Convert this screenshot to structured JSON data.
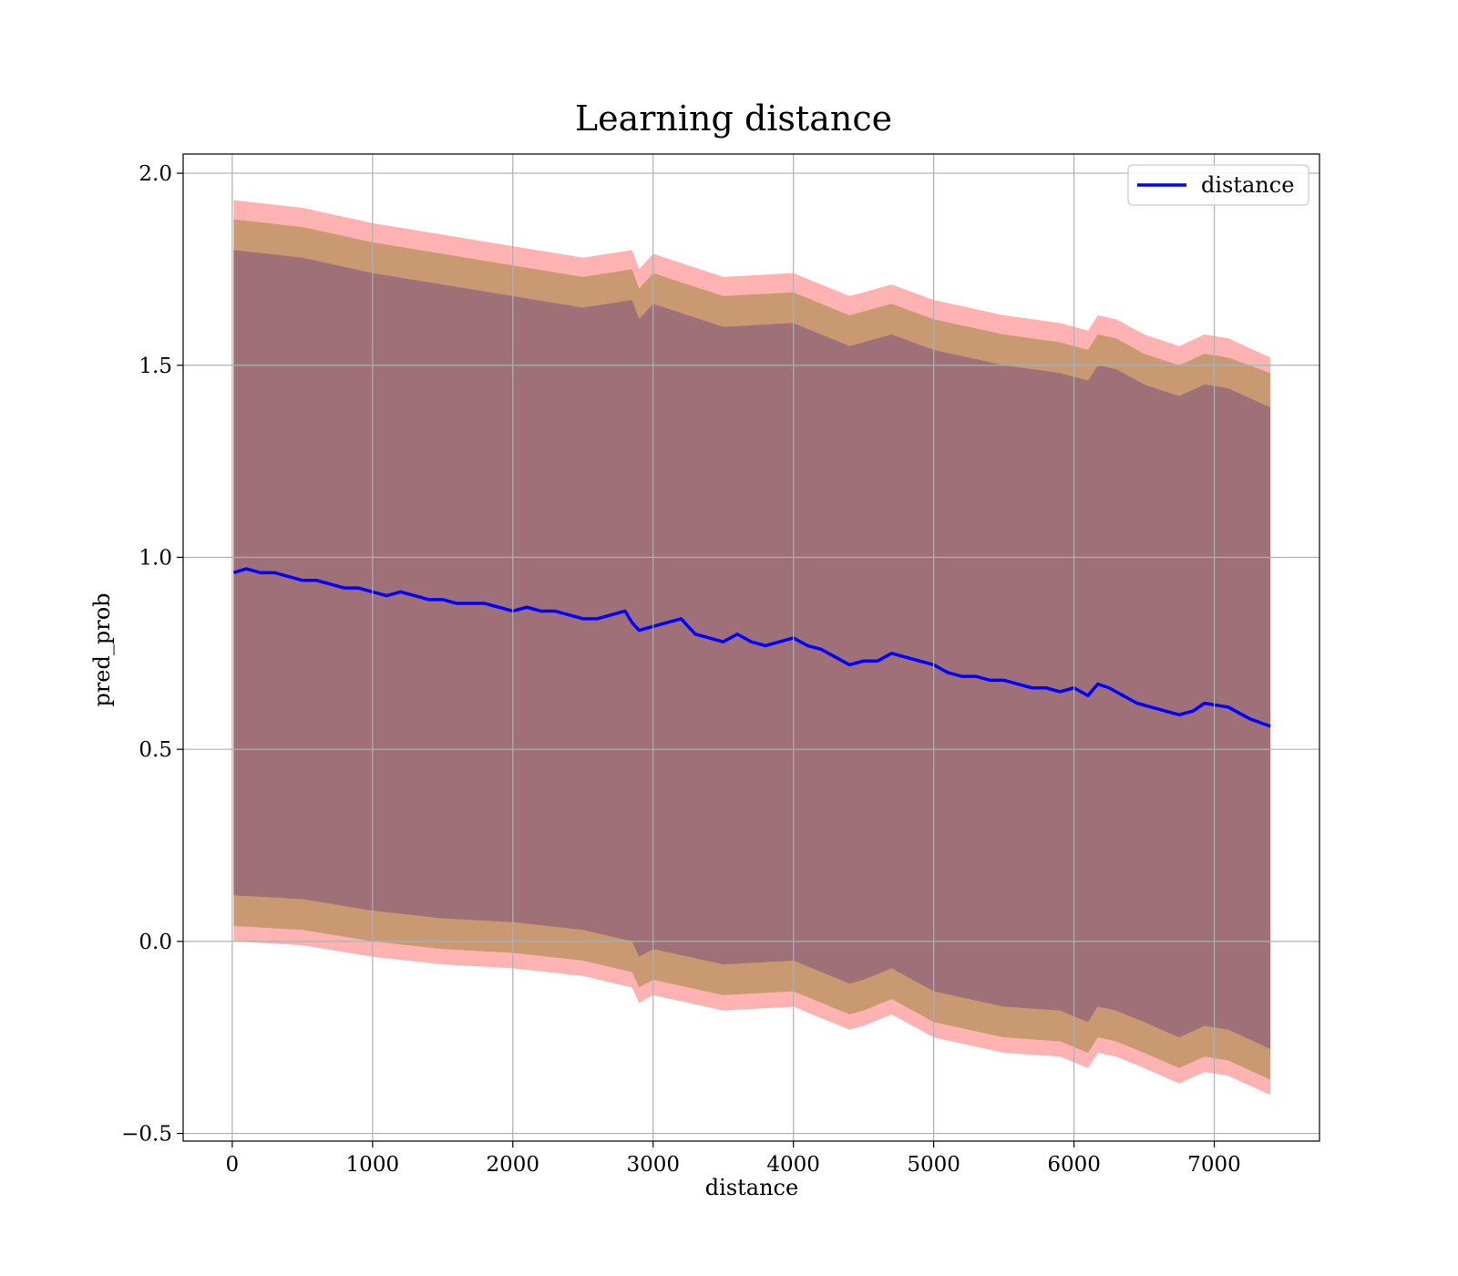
{
  "chart_data": {
    "type": "line",
    "title": "Learning distance",
    "xlabel": "distance",
    "ylabel": "pred_prob",
    "xlim": [
      -350,
      7750
    ],
    "ylim": [
      -0.52,
      2.05
    ],
    "xticks": [
      0,
      1000,
      2000,
      3000,
      4000,
      5000,
      6000,
      7000
    ],
    "xtick_labels": [
      "0",
      "1000",
      "2000",
      "3000",
      "4000",
      "5000",
      "6000",
      "7000"
    ],
    "yticks": [
      -0.5,
      0.0,
      0.5,
      1.0,
      1.5,
      2.0
    ],
    "ytick_labels": [
      "−0.5",
      "0.0",
      "0.5",
      "1.0",
      "1.5",
      "2.0"
    ],
    "grid": true,
    "legend": {
      "placement": "top-right",
      "entries": [
        "distance"
      ]
    },
    "series": [
      {
        "name": "distance",
        "color": "#0000ff",
        "x": [
          10,
          100,
          200,
          300,
          400,
          500,
          600,
          700,
          800,
          900,
          1000,
          1100,
          1200,
          1300,
          1400,
          1500,
          1600,
          1700,
          1800,
          1900,
          2000,
          2100,
          2200,
          2300,
          2400,
          2500,
          2600,
          2700,
          2800,
          2850,
          2900,
          3000,
          3100,
          3200,
          3300,
          3400,
          3500,
          3600,
          3700,
          3800,
          3900,
          4000,
          4100,
          4200,
          4300,
          4400,
          4500,
          4600,
          4700,
          4800,
          4900,
          5000,
          5100,
          5200,
          5300,
          5400,
          5500,
          5600,
          5700,
          5800,
          5900,
          6000,
          6100,
          6170,
          6250,
          6350,
          6450,
          6550,
          6650,
          6750,
          6850,
          6930,
          7100,
          7250,
          7400
        ],
        "y": [
          0.96,
          0.97,
          0.96,
          0.96,
          0.95,
          0.94,
          0.94,
          0.93,
          0.92,
          0.92,
          0.91,
          0.9,
          0.91,
          0.9,
          0.89,
          0.89,
          0.88,
          0.88,
          0.88,
          0.87,
          0.86,
          0.87,
          0.86,
          0.86,
          0.85,
          0.84,
          0.84,
          0.85,
          0.86,
          0.83,
          0.81,
          0.82,
          0.83,
          0.84,
          0.8,
          0.79,
          0.78,
          0.8,
          0.78,
          0.77,
          0.78,
          0.79,
          0.77,
          0.76,
          0.74,
          0.72,
          0.73,
          0.73,
          0.75,
          0.74,
          0.73,
          0.72,
          0.7,
          0.69,
          0.69,
          0.68,
          0.68,
          0.67,
          0.66,
          0.66,
          0.65,
          0.66,
          0.64,
          0.67,
          0.66,
          0.64,
          0.62,
          0.61,
          0.6,
          0.59,
          0.6,
          0.62,
          0.61,
          0.58,
          0.56
        ]
      }
    ],
    "bands": [
      {
        "name": "outer",
        "color": "#ff6666",
        "opacity": 0.5,
        "x": [
          10,
          500,
          1000,
          1500,
          2000,
          2500,
          2850,
          2900,
          3000,
          3500,
          4000,
          4400,
          4500,
          4700,
          5000,
          5500,
          5900,
          6100,
          6170,
          6300,
          6500,
          6750,
          6930,
          7100,
          7400
        ],
        "upper": [
          1.93,
          1.91,
          1.87,
          1.84,
          1.81,
          1.78,
          1.8,
          1.75,
          1.79,
          1.73,
          1.74,
          1.68,
          1.69,
          1.71,
          1.67,
          1.63,
          1.61,
          1.59,
          1.63,
          1.62,
          1.58,
          1.55,
          1.58,
          1.57,
          1.52
        ],
        "lower": [
          0.0,
          -0.01,
          -0.04,
          -0.06,
          -0.07,
          -0.09,
          -0.12,
          -0.16,
          -0.14,
          -0.18,
          -0.17,
          -0.23,
          -0.22,
          -0.19,
          -0.25,
          -0.29,
          -0.3,
          -0.33,
          -0.29,
          -0.3,
          -0.33,
          -0.37,
          -0.34,
          -0.35,
          -0.4
        ]
      },
      {
        "name": "middle",
        "color": "#c99a72",
        "opacity": 1.0,
        "x": [
          10,
          500,
          1000,
          1500,
          2000,
          2500,
          2850,
          2900,
          3000,
          3500,
          4000,
          4400,
          4500,
          4700,
          5000,
          5500,
          5900,
          6100,
          6170,
          6300,
          6500,
          6750,
          6930,
          7100,
          7400
        ],
        "upper": [
          1.88,
          1.86,
          1.82,
          1.79,
          1.76,
          1.73,
          1.75,
          1.7,
          1.74,
          1.68,
          1.69,
          1.63,
          1.64,
          1.66,
          1.62,
          1.58,
          1.56,
          1.54,
          1.58,
          1.57,
          1.53,
          1.5,
          1.53,
          1.52,
          1.48
        ],
        "lower": [
          0.04,
          0.03,
          0.0,
          -0.02,
          -0.03,
          -0.05,
          -0.08,
          -0.12,
          -0.1,
          -0.14,
          -0.13,
          -0.19,
          -0.18,
          -0.15,
          -0.21,
          -0.25,
          -0.26,
          -0.29,
          -0.25,
          -0.26,
          -0.29,
          -0.33,
          -0.3,
          -0.31,
          -0.36
        ]
      },
      {
        "name": "inner",
        "color": "#a07078",
        "opacity": 1.0,
        "x": [
          10,
          500,
          1000,
          1500,
          2000,
          2500,
          2850,
          2900,
          3000,
          3500,
          4000,
          4400,
          4500,
          4700,
          5000,
          5500,
          5900,
          6100,
          6170,
          6300,
          6500,
          6750,
          6930,
          7100,
          7400
        ],
        "upper": [
          1.8,
          1.78,
          1.74,
          1.71,
          1.68,
          1.65,
          1.67,
          1.62,
          1.66,
          1.6,
          1.61,
          1.55,
          1.56,
          1.58,
          1.54,
          1.5,
          1.48,
          1.46,
          1.5,
          1.49,
          1.45,
          1.42,
          1.45,
          1.44,
          1.39
        ],
        "lower": [
          0.12,
          0.11,
          0.08,
          0.06,
          0.05,
          0.03,
          0.0,
          -0.04,
          -0.02,
          -0.06,
          -0.05,
          -0.11,
          -0.1,
          -0.07,
          -0.13,
          -0.17,
          -0.18,
          -0.21,
          -0.17,
          -0.18,
          -0.21,
          -0.25,
          -0.22,
          -0.23,
          -0.28
        ]
      }
    ]
  }
}
